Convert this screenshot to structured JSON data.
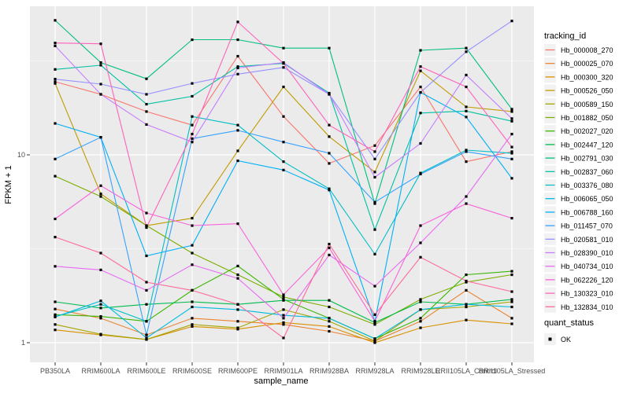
{
  "figure": {
    "bg": "#FFFFFF",
    "panel_bg": "#EBEBEB",
    "grid_color": "#FFFFFF",
    "tick_color": "#333333",
    "tick_label_color": "#4D4D4D",
    "label_color": "#000000",
    "point_color": "#000000",
    "legend_key_bg": "#F2F2F2"
  },
  "axes": {
    "y_label": "FPKM + 1",
    "x_label": "sample_name",
    "y_tick_labels": [
      "10",
      "1"
    ],
    "y_tick_values": [
      10,
      1
    ]
  },
  "legend": {
    "tracking_title": "tracking_id",
    "quant_title": "quant_status",
    "quant_items": [
      {
        "label": "OK",
        "marker": "filled-square"
      }
    ]
  },
  "chart_data": {
    "type": "line",
    "title": "",
    "xlabel": "sample_name",
    "ylabel": "FPKM + 1",
    "y_scale": "log10",
    "ylim": [
      0.79,
      62
    ],
    "y_major_gridlines": [
      1,
      10
    ],
    "y_minor_gridlines": [
      3.162,
      31.62
    ],
    "grid": true,
    "legend_position": "right",
    "point_marker": "filled-square",
    "categories": [
      "PB350LA",
      "RRIM600LA",
      "RRIM600LE",
      "RRIM600SE",
      "RRIM600PE",
      "RRIM901LA",
      "RRIM928BA",
      "RRIM928LA",
      "RRIM928LE",
      "RRII105LA_Control",
      "RRII105LA_Stressed"
    ],
    "series": [
      {
        "name": "Hb_000008_270",
        "color": "#F8766D",
        "values": [
          24.5,
          21,
          17,
          14.4,
          33.5,
          16,
          9.0,
          11.2,
          23,
          9.2,
          10.4
        ]
      },
      {
        "name": "Hb_000025_070",
        "color": "#EA8331",
        "values": [
          1.51,
          1.35,
          1.1,
          1.35,
          1.3,
          1.25,
          1.15,
          1.02,
          1.3,
          1.9,
          1.35
        ]
      },
      {
        "name": "Hb_000300_320",
        "color": "#D89000",
        "values": [
          1.17,
          1.1,
          1.04,
          1.22,
          1.18,
          1.28,
          1.22,
          1.0,
          1.2,
          1.32,
          1.26
        ]
      },
      {
        "name": "Hb_000526_050",
        "color": "#C09B00",
        "values": [
          24,
          6.2,
          4.2,
          4.6,
          10.5,
          23,
          12.5,
          8.1,
          28,
          18,
          17
        ]
      },
      {
        "name": "Hb_000589_150",
        "color": "#A3A500",
        "values": [
          1.25,
          1.11,
          1.04,
          1.25,
          1.2,
          1.5,
          1.3,
          1.02,
          1.5,
          1.55,
          1.65
        ]
      },
      {
        "name": "Hb_001882_050",
        "color": "#7CAE00",
        "values": [
          7.7,
          6.0,
          4.2,
          3.0,
          2.3,
          1.75,
          1.55,
          1.25,
          1.7,
          2.1,
          2.3
        ]
      },
      {
        "name": "Hb_002027_020",
        "color": "#39B600",
        "values": [
          1.41,
          1.38,
          1.3,
          1.9,
          2.56,
          1.7,
          1.35,
          1.05,
          1.35,
          2.3,
          2.4
        ]
      },
      {
        "name": "Hb_002447_120",
        "color": "#00BB4E",
        "values": [
          1.65,
          1.53,
          1.6,
          1.65,
          1.6,
          1.68,
          1.68,
          1.28,
          1.65,
          1.6,
          1.7
        ]
      },
      {
        "name": "Hb_002791_030",
        "color": "#00BF7D",
        "values": [
          52,
          31,
          25.4,
          41,
          41,
          37,
          37,
          5.5,
          36,
          37,
          17.5
        ]
      },
      {
        "name": "Hb_002837_060",
        "color": "#00C1A3",
        "values": [
          28.5,
          30,
          18.6,
          20.5,
          29.5,
          30.7,
          21.3,
          4.0,
          16.7,
          17.1,
          15.1
        ]
      },
      {
        "name": "Hb_003376_080",
        "color": "#00BFC4",
        "values": [
          1.38,
          1.6,
          1.3,
          16,
          14.4,
          9.2,
          6.6,
          2.96,
          8.0,
          10.6,
          10.2
        ]
      },
      {
        "name": "Hb_006065_050",
        "color": "#00BAE0",
        "values": [
          1.37,
          1.67,
          1.06,
          1.55,
          1.5,
          1.4,
          1.35,
          1.05,
          1.5,
          1.6,
          1.55
        ]
      },
      {
        "name": "Hb_006788_160",
        "color": "#00B0F6",
        "values": [
          14.7,
          12.4,
          2.9,
          3.3,
          9.3,
          8.3,
          6.5,
          1.3,
          21.5,
          15.9,
          7.5
        ]
      },
      {
        "name": "Hb_011457_070",
        "color": "#35A2FF",
        "values": [
          9.5,
          12.4,
          1.1,
          12.2,
          13.5,
          11.7,
          10.2,
          5.6,
          7.9,
          10.4,
          9.5
        ]
      },
      {
        "name": "Hb_020581_010",
        "color": "#9590FF",
        "values": [
          25.3,
          23.8,
          21,
          24,
          26.9,
          29.2,
          21,
          9.5,
          21.5,
          35.4,
          51.6
        ]
      },
      {
        "name": "Hb_028390_010",
        "color": "#C77CFF",
        "values": [
          38,
          21,
          14.5,
          11.7,
          29,
          31,
          21,
          7.6,
          11.5,
          26.6,
          15.6
        ]
      },
      {
        "name": "Hb_040734_010",
        "color": "#E76BF3",
        "values": [
          2.55,
          2.44,
          1.9,
          2.6,
          2.2,
          1.35,
          2.93,
          2.0,
          3.4,
          6.0,
          12.9
        ]
      },
      {
        "name": "Hb_062226_120",
        "color": "#FA62DB",
        "values": [
          4.56,
          6.85,
          4.9,
          4.2,
          4.3,
          1.8,
          3.2,
          1.3,
          4.2,
          5.5,
          4.6
        ]
      },
      {
        "name": "Hb_130323_010",
        "color": "#FF62BC",
        "values": [
          39.4,
          39,
          4.1,
          12.9,
          51,
          30.7,
          14.4,
          10.4,
          29.5,
          23,
          11
        ]
      },
      {
        "name": "Hb_132834_010",
        "color": "#FF6A98",
        "values": [
          3.65,
          3.0,
          2.1,
          1.9,
          1.6,
          1.06,
          3.35,
          1.41,
          2.85,
          2.13,
          1.87
        ]
      }
    ],
    "quant_status": "OK"
  }
}
